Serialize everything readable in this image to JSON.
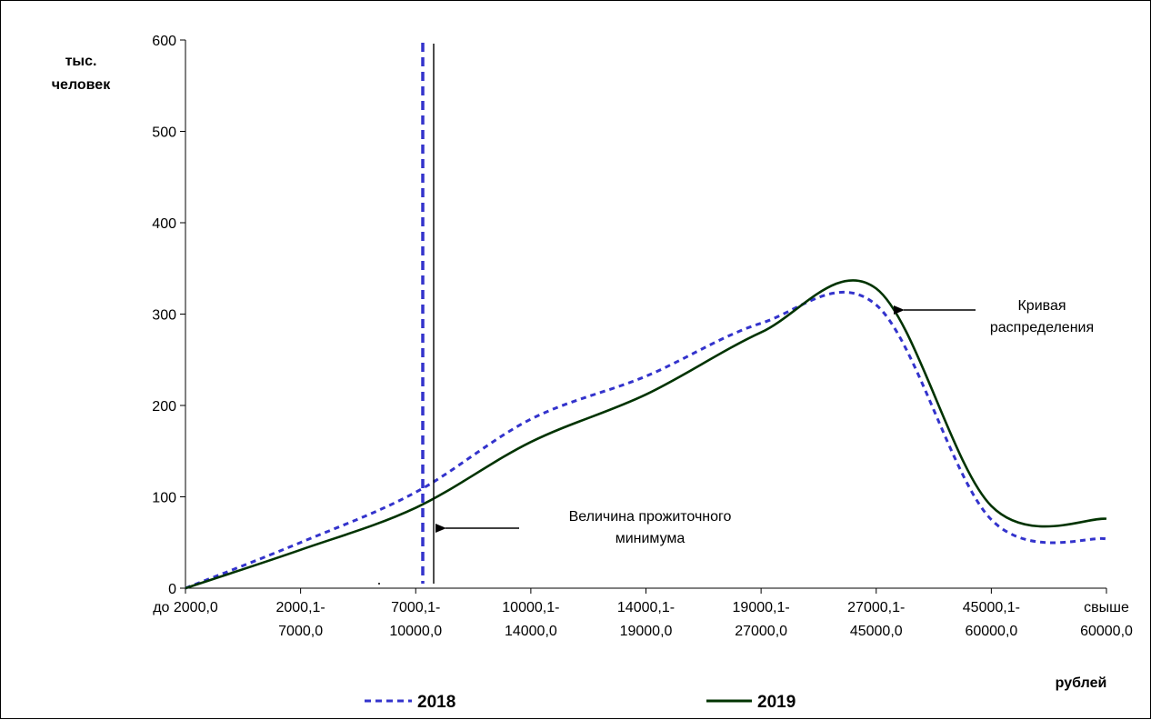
{
  "chart_data": {
    "type": "line",
    "title": "",
    "ylabel_lines": [
      "тыс.",
      "человек"
    ],
    "xlabel": "рублей",
    "ylim": [
      0,
      600
    ],
    "yticks": [
      0,
      100,
      200,
      300,
      400,
      500,
      600
    ],
    "categories": [
      [
        "до 2000,0"
      ],
      [
        "2000,1-",
        "7000,0"
      ],
      [
        "7000,1-",
        "10000,0"
      ],
      [
        "10000,1-",
        "14000,0"
      ],
      [
        "14000,1-",
        "19000,0"
      ],
      [
        "19000,1-",
        "27000,0"
      ],
      [
        "27000,1-",
        "45000,0"
      ],
      [
        "45000,1-",
        "60000,0"
      ],
      [
        "свыше",
        "60000,0"
      ]
    ],
    "series": [
      {
        "name": "2018",
        "color": "#3333cc",
        "dash": true,
        "values": [
          0,
          50,
          105,
          185,
          232,
          290,
          310,
          75,
          54
        ]
      },
      {
        "name": "2019",
        "color": "#003300",
        "dash": false,
        "values": [
          0,
          42,
          88,
          160,
          212,
          280,
          328,
          90,
          76
        ]
      }
    ],
    "annotations": {
      "min_living_lines": [
        "Величина прожиточного",
        "минимума"
      ],
      "curve_lines": [
        "Кривая",
        "распределения"
      ]
    },
    "legend_position": "bottom"
  }
}
